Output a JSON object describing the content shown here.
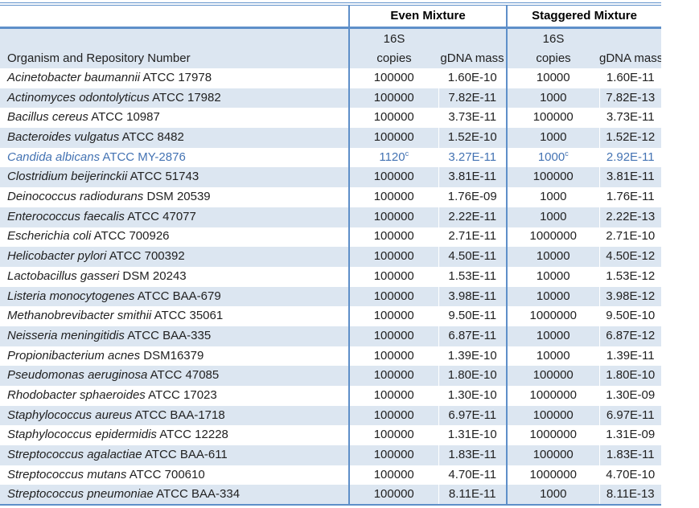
{
  "headers": {
    "organism_col": "Organism and Repository Number",
    "even_group": "Even Mixture",
    "staggered_group": "Staggered Mixture",
    "sub_16s": "16S",
    "sub_copies": "copies",
    "sub_gdna": "gDNA mass"
  },
  "colors": {
    "band": "#DCE6F1",
    "border": "#5E8FC9",
    "highlight_text": "#4473B3"
  },
  "rows": [
    {
      "species": "Acinetobacter baumannii",
      "repo": "ATCC 17978",
      "even_copies": "100000",
      "even_copies_sup": "",
      "even_gdna": "1.60E-10",
      "stag_copies": "10000",
      "stag_copies_sup": "",
      "stag_gdna": "1.60E-11",
      "highlight": false
    },
    {
      "species": "Actinomyces odontolyticus",
      "repo": "ATCC 17982",
      "even_copies": "100000",
      "even_copies_sup": "",
      "even_gdna": "7.82E-11",
      "stag_copies": "1000",
      "stag_copies_sup": "",
      "stag_gdna": "7.82E-13",
      "highlight": false
    },
    {
      "species": "Bacillus cereus",
      "repo": "ATCC 10987",
      "even_copies": "100000",
      "even_copies_sup": "",
      "even_gdna": "3.73E-11",
      "stag_copies": "100000",
      "stag_copies_sup": "",
      "stag_gdna": "3.73E-11",
      "highlight": false
    },
    {
      "species": "Bacteroides vulgatus",
      "repo": "ATCC 8482",
      "even_copies": "100000",
      "even_copies_sup": "",
      "even_gdna": "1.52E-10",
      "stag_copies": "1000",
      "stag_copies_sup": "",
      "stag_gdna": "1.52E-12",
      "highlight": false
    },
    {
      "species": "Candida albicans",
      "repo": "ATCC MY-2876",
      "even_copies": "1120",
      "even_copies_sup": "c",
      "even_gdna": "3.27E-11",
      "stag_copies": "1000",
      "stag_copies_sup": "c",
      "stag_gdna": "2.92E-11",
      "highlight": true
    },
    {
      "species": "Clostridium beijerinckii",
      "repo": "ATCC 51743",
      "even_copies": "100000",
      "even_copies_sup": "",
      "even_gdna": "3.81E-11",
      "stag_copies": "100000",
      "stag_copies_sup": "",
      "stag_gdna": "3.81E-11",
      "highlight": false
    },
    {
      "species": "Deinococcus radiodurans",
      "repo": "DSM 20539",
      "even_copies": "100000",
      "even_copies_sup": "",
      "even_gdna": "1.76E-09",
      "stag_copies": "1000",
      "stag_copies_sup": "",
      "stag_gdna": "1.76E-11",
      "highlight": false
    },
    {
      "species": "Enterococcus faecalis",
      "repo": "ATCC 47077",
      "even_copies": "100000",
      "even_copies_sup": "",
      "even_gdna": "2.22E-11",
      "stag_copies": "1000",
      "stag_copies_sup": "",
      "stag_gdna": "2.22E-13",
      "highlight": false
    },
    {
      "species": "Escherichia coli",
      "repo": "ATCC 700926",
      "even_copies": "100000",
      "even_copies_sup": "",
      "even_gdna": "2.71E-11",
      "stag_copies": "1000000",
      "stag_copies_sup": "",
      "stag_gdna": "2.71E-10",
      "highlight": false
    },
    {
      "species": "Helicobacter pylori",
      "repo": "ATCC 700392",
      "even_copies": "100000",
      "even_copies_sup": "",
      "even_gdna": "4.50E-11",
      "stag_copies": "10000",
      "stag_copies_sup": "",
      "stag_gdna": "4.50E-12",
      "highlight": false
    },
    {
      "species": "Lactobacillus gasseri",
      "repo": "DSM 20243",
      "even_copies": "100000",
      "even_copies_sup": "",
      "even_gdna": "1.53E-11",
      "stag_copies": "10000",
      "stag_copies_sup": "",
      "stag_gdna": "1.53E-12",
      "highlight": false
    },
    {
      "species": "Listeria monocytogenes",
      "repo": "ATCC BAA-679",
      "even_copies": "100000",
      "even_copies_sup": "",
      "even_gdna": "3.98E-11",
      "stag_copies": "10000",
      "stag_copies_sup": "",
      "stag_gdna": "3.98E-12",
      "highlight": false
    },
    {
      "species": "Methanobrevibacter smithii",
      "repo": "ATCC 35061",
      "even_copies": "100000",
      "even_copies_sup": "",
      "even_gdna": "9.50E-11",
      "stag_copies": "1000000",
      "stag_copies_sup": "",
      "stag_gdna": "9.50E-10",
      "highlight": false
    },
    {
      "species": "Neisseria meningitidis",
      "repo": "ATCC BAA-335",
      "even_copies": "100000",
      "even_copies_sup": "",
      "even_gdna": "6.87E-11",
      "stag_copies": "10000",
      "stag_copies_sup": "",
      "stag_gdna": "6.87E-12",
      "highlight": false
    },
    {
      "species": "Propionibacterium acnes",
      "repo": "DSM16379",
      "even_copies": "100000",
      "even_copies_sup": "",
      "even_gdna": "1.39E-10",
      "stag_copies": "10000",
      "stag_copies_sup": "",
      "stag_gdna": "1.39E-11",
      "highlight": false
    },
    {
      "species": "Pseudomonas aeruginosa",
      "repo": "ATCC 47085",
      "even_copies": "100000",
      "even_copies_sup": "",
      "even_gdna": "1.80E-10",
      "stag_copies": "100000",
      "stag_copies_sup": "",
      "stag_gdna": "1.80E-10",
      "highlight": false
    },
    {
      "species": "Rhodobacter sphaeroides",
      "repo": "ATCC 17023",
      "even_copies": "100000",
      "even_copies_sup": "",
      "even_gdna": "1.30E-10",
      "stag_copies": "1000000",
      "stag_copies_sup": "",
      "stag_gdna": "1.30E-09",
      "highlight": false
    },
    {
      "species": "Staphylococcus aureus",
      "repo": "ATCC BAA-1718",
      "even_copies": "100000",
      "even_copies_sup": "",
      "even_gdna": "6.97E-11",
      "stag_copies": "100000",
      "stag_copies_sup": "",
      "stag_gdna": "6.97E-11",
      "highlight": false
    },
    {
      "species": "Staphylococcus epidermidis",
      "repo": "ATCC 12228",
      "even_copies": "100000",
      "even_copies_sup": "",
      "even_gdna": "1.31E-10",
      "stag_copies": "1000000",
      "stag_copies_sup": "",
      "stag_gdna": "1.31E-09",
      "highlight": false
    },
    {
      "species": "Streptococcus agalactiae",
      "repo": "ATCC BAA-611",
      "even_copies": "100000",
      "even_copies_sup": "",
      "even_gdna": "1.83E-11",
      "stag_copies": "100000",
      "stag_copies_sup": "",
      "stag_gdna": "1.83E-11",
      "highlight": false
    },
    {
      "species": "Streptococcus mutans",
      "repo": "ATCC 700610",
      "even_copies": "100000",
      "even_copies_sup": "",
      "even_gdna": "4.70E-11",
      "stag_copies": "1000000",
      "stag_copies_sup": "",
      "stag_gdna": "4.70E-10",
      "highlight": false
    },
    {
      "species": "Streptococcus pneumoniae",
      "repo": "ATCC BAA-334",
      "even_copies": "100000",
      "even_copies_sup": "",
      "even_gdna": "8.11E-11",
      "stag_copies": "1000",
      "stag_copies_sup": "",
      "stag_gdna": "8.11E-13",
      "highlight": false
    }
  ]
}
